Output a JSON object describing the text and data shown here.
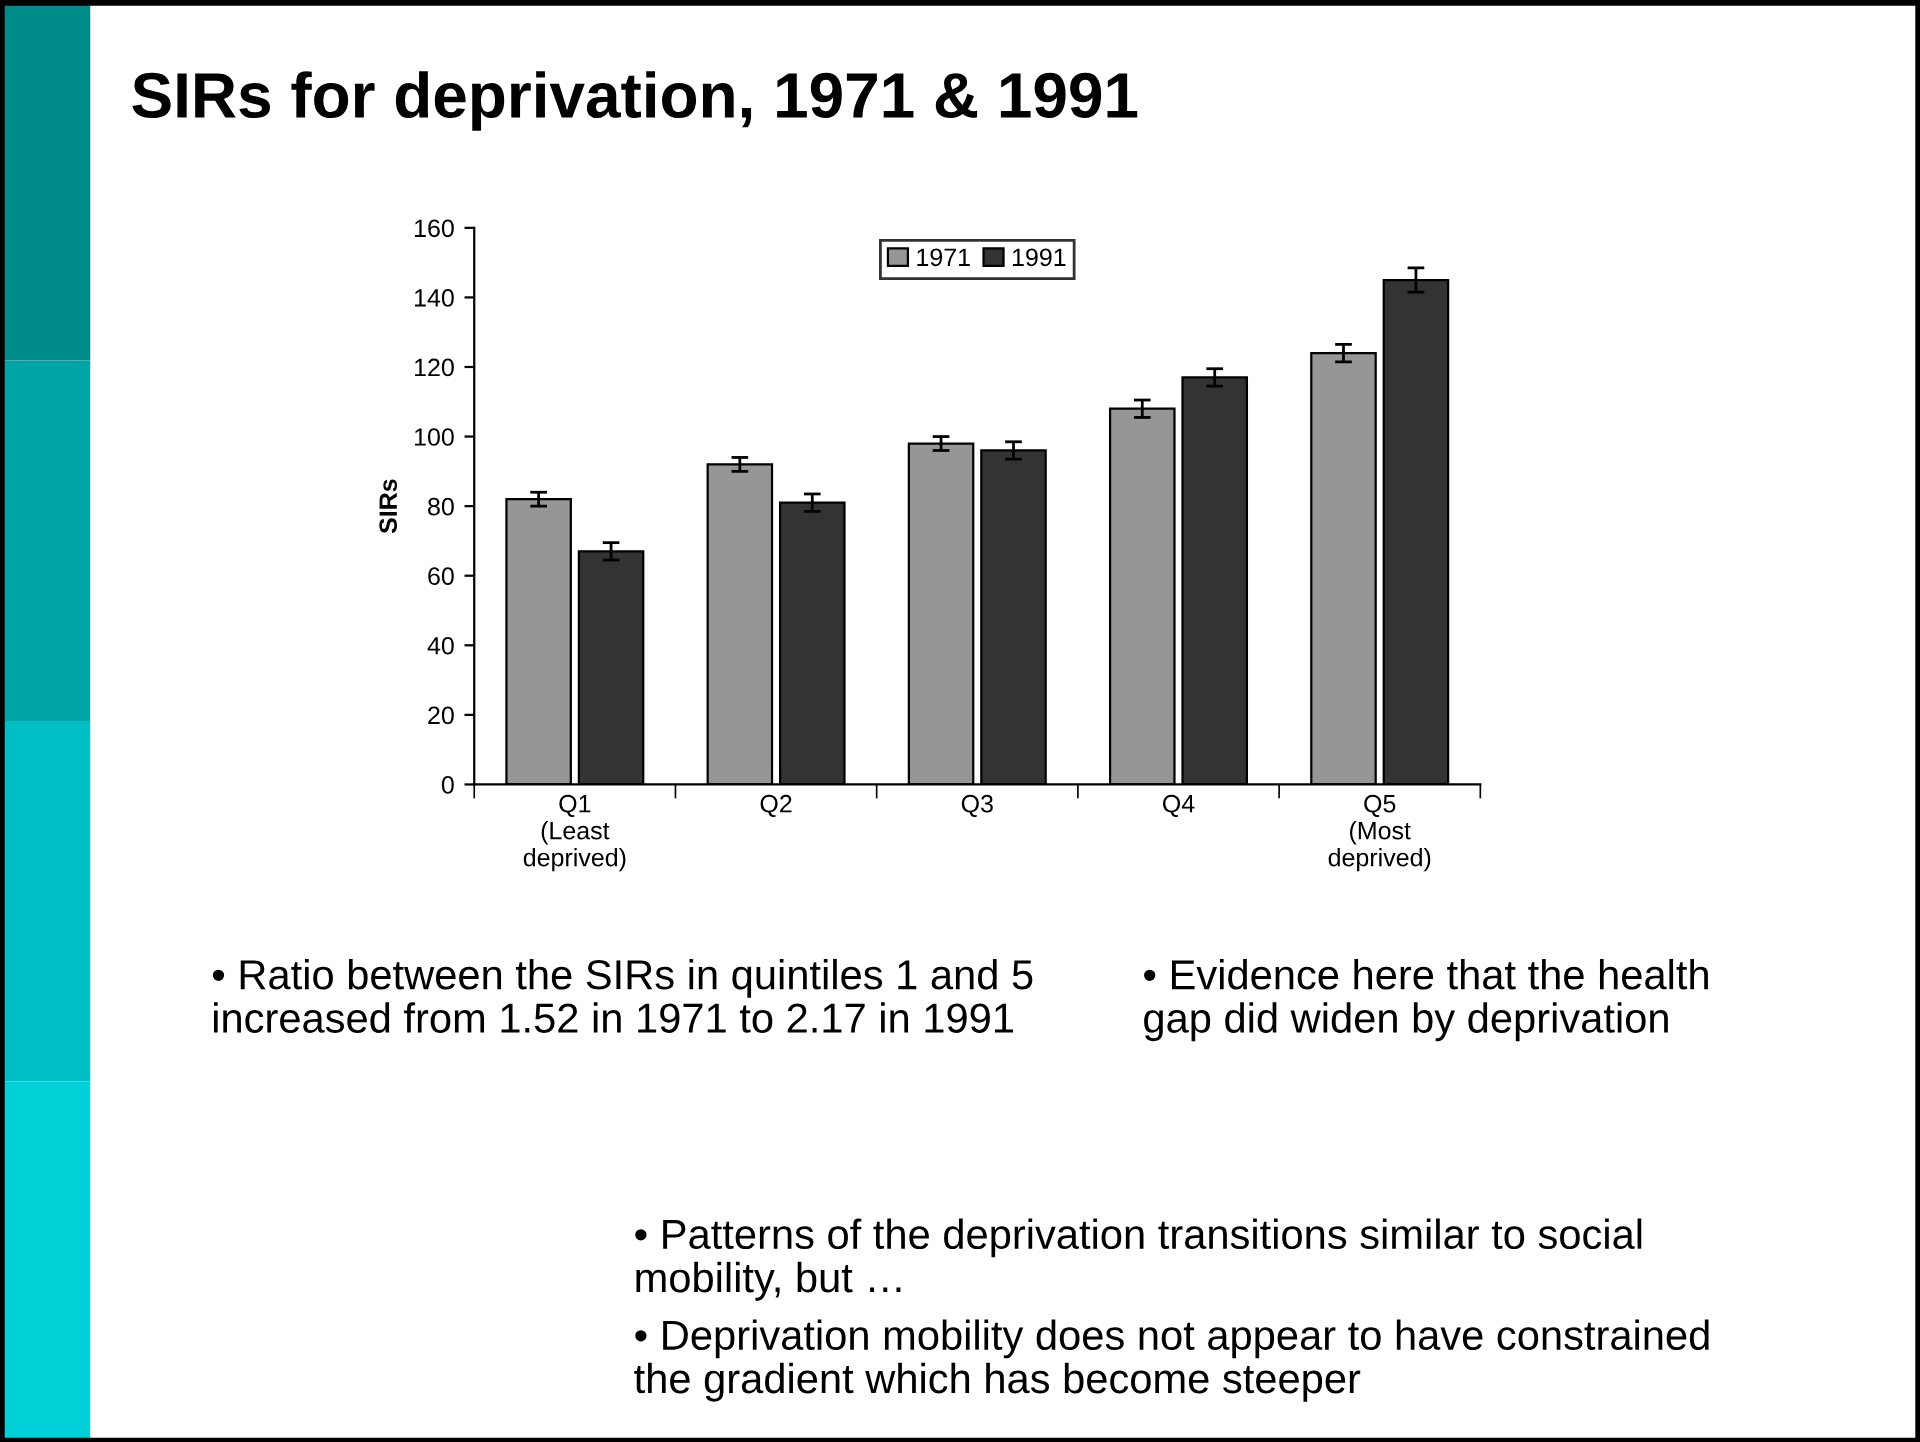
{
  "chart_data": {
    "type": "bar",
    "title": "SIRs for deprivation, 1971 & 1991",
    "ylabel": "SIRs",
    "categories": [
      "Q1\n(Least\ndeprived)",
      "Q2",
      "Q3",
      "Q4",
      "Q5\n(Most\ndeprived)"
    ],
    "series": [
      {
        "name": "1971",
        "color": "#969696",
        "values": [
          82,
          92,
          98,
          108,
          124
        ],
        "errors": [
          2,
          2,
          2,
          2.5,
          2.5
        ]
      },
      {
        "name": "1991",
        "color": "#333333",
        "values": [
          67,
          81,
          96,
          117,
          145
        ],
        "errors": [
          2.5,
          2.5,
          2.5,
          2.5,
          3.5
        ]
      }
    ],
    "ylim": [
      0,
      160
    ],
    "yticks": [
      0,
      20,
      40,
      60,
      80,
      100,
      120,
      140,
      160
    ],
    "legend": "top",
    "grid": false,
    "annotations": [
      "• Ratio between the SIRs in quintiles 1 and 5 increased from 1.52 in 1971 to 2.17 in 1991",
      "• Evidence here that the health gap did widen by deprivation",
      "• Patterns of the deprivation transitions similar to social mobility, but …",
      "• Deprivation mobility does not appear to have constrained the gradient which has become steeper"
    ]
  }
}
